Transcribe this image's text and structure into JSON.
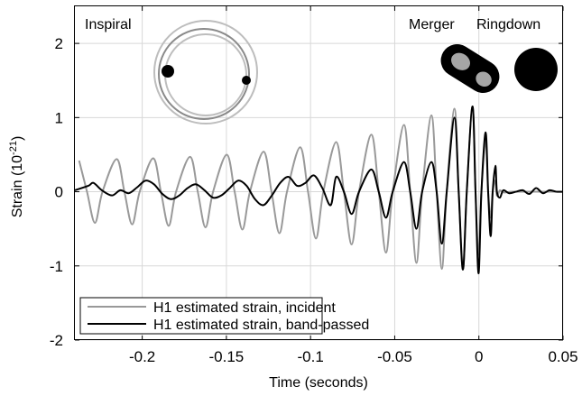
{
  "chart_data": {
    "type": "line",
    "title": "",
    "xlabel": "Time (seconds)",
    "ylabel_prefix": "Strain (10",
    "ylabel_exponent": "-21",
    "ylabel_suffix": ")",
    "xlim": [
      -0.24,
      0.05
    ],
    "ylim": [
      -2,
      2.5
    ],
    "x_ticks": [
      -0.2,
      -0.15,
      -0.1,
      -0.05,
      0,
      0.05
    ],
    "x_tick_labels": [
      "-0.2",
      "-0.15",
      "-0.1",
      "-0.05",
      "0",
      "0.05"
    ],
    "y_ticks": [
      -2,
      -1,
      0,
      1,
      2
    ],
    "y_tick_labels": [
      "-2",
      "-1",
      "0",
      "1",
      "2"
    ],
    "grid": true,
    "legend_position": "bottom-left",
    "annotations": [
      "Inspiral",
      "Merger",
      "Ringdown"
    ],
    "series": [
      {
        "name": "H1 estimated strain, incident",
        "color": "#999999",
        "x": [
          -0.2375,
          -0.2328,
          -0.2281,
          -0.2236,
          -0.2152,
          -0.2106,
          -0.206,
          -0.2015,
          -0.1935,
          -0.1889,
          -0.1843,
          -0.1799,
          -0.1716,
          -0.167,
          -0.1624,
          -0.1579,
          -0.1498,
          -0.1451,
          -0.1405,
          -0.136,
          -0.1279,
          -0.1232,
          -0.1185,
          -0.114,
          -0.1062,
          -0.1015,
          -0.0968,
          -0.0924,
          -0.0848,
          -0.0802,
          -0.0756,
          -0.0712,
          -0.0639,
          -0.0595,
          -0.0552,
          -0.0512,
          -0.0445,
          -0.0408,
          -0.0371,
          -0.0337,
          -0.0282,
          -0.0251,
          -0.022,
          -0.0191,
          -0.0145,
          -0.012,
          -0.0095,
          -0.0072,
          -0.0038,
          -0.002,
          -0.0002,
          0.0015,
          0.004,
          0.0055,
          0.007,
          0.0082,
          0.0098,
          0.0107,
          0.0125,
          0.0145,
          0.02,
          0.03,
          0.04,
          0.05
        ],
        "y": [
          0.42,
          0,
          -0.42,
          0,
          0.44,
          0,
          -0.44,
          0,
          0.45,
          0,
          -0.46,
          0,
          0.47,
          0,
          -0.48,
          0,
          0.5,
          0,
          -0.51,
          0,
          0.54,
          0,
          -0.56,
          0,
          0.6,
          0,
          -0.63,
          0,
          0.67,
          0,
          -0.71,
          0,
          0.77,
          0,
          -0.82,
          0,
          0.9,
          0,
          -0.96,
          0,
          1.03,
          0,
          -1.04,
          0,
          1.12,
          0,
          -1.05,
          0,
          1.15,
          0,
          -0.85,
          0,
          0.7,
          0,
          -0.35,
          0,
          0.15,
          -0.05,
          0.02,
          -0.01,
          0,
          0,
          0,
          0
        ]
      },
      {
        "name": "H1 estimated strain, band-passed",
        "color": "#000000",
        "x": [
          -0.24,
          -0.232,
          -0.229,
          -0.224,
          -0.218,
          -0.213,
          -0.208,
          -0.203,
          -0.198,
          -0.193,
          -0.188,
          -0.183,
          -0.178,
          -0.173,
          -0.168,
          -0.163,
          -0.158,
          -0.153,
          -0.148,
          -0.143,
          -0.138,
          -0.133,
          -0.128,
          -0.123,
          -0.118,
          -0.113,
          -0.108,
          -0.103,
          -0.098,
          -0.093,
          -0.088,
          -0.0848,
          -0.0802,
          -0.0756,
          -0.0712,
          -0.0639,
          -0.0595,
          -0.0552,
          -0.0512,
          -0.0445,
          -0.0408,
          -0.0371,
          -0.0337,
          -0.0282,
          -0.0251,
          -0.022,
          -0.0191,
          -0.0145,
          -0.012,
          -0.0095,
          -0.0072,
          -0.0038,
          -0.002,
          -0.0002,
          0.0015,
          0.004,
          0.0055,
          0.007,
          0.0082,
          0.0098,
          0.0107,
          0.0125,
          0.0145,
          0.018,
          0.022,
          0.026,
          0.03,
          0.034,
          0.038,
          0.042,
          0.046,
          0.05
        ],
        "y": [
          0.02,
          0.08,
          0.12,
          0.02,
          -0.05,
          0.02,
          -0.02,
          0.06,
          0.15,
          0.1,
          -0.03,
          -0.1,
          -0.05,
          0.05,
          0.1,
          0.02,
          -0.08,
          -0.05,
          0.05,
          0.15,
          0.08,
          -0.1,
          -0.18,
          -0.05,
          0.12,
          0.2,
          0.08,
          0.12,
          0.22,
          0.05,
          -0.18,
          0.2,
          0.0,
          -0.3,
          0.0,
          0.3,
          0.0,
          -0.35,
          0.0,
          0.4,
          0.0,
          -0.5,
          0.0,
          0.4,
          0.0,
          -0.7,
          0.0,
          1.0,
          0.0,
          -1.05,
          0.0,
          1.15,
          0.0,
          -1.1,
          0.0,
          0.8,
          0.0,
          -0.6,
          0.0,
          0.35,
          0.0,
          -0.08,
          0.02,
          -0.02,
          0.0,
          0.02,
          -0.03,
          0.05,
          -0.02,
          0.02,
          0.0,
          0.0
        ]
      }
    ]
  },
  "diagram": {
    "orbit_colors": [
      "#bdbdbd",
      "#8a8a8a",
      "#6e6e6e"
    ],
    "merger_body_color": "#000000",
    "merger_core_color": "#a6a6a6",
    "ringdown_color": "#000000"
  }
}
